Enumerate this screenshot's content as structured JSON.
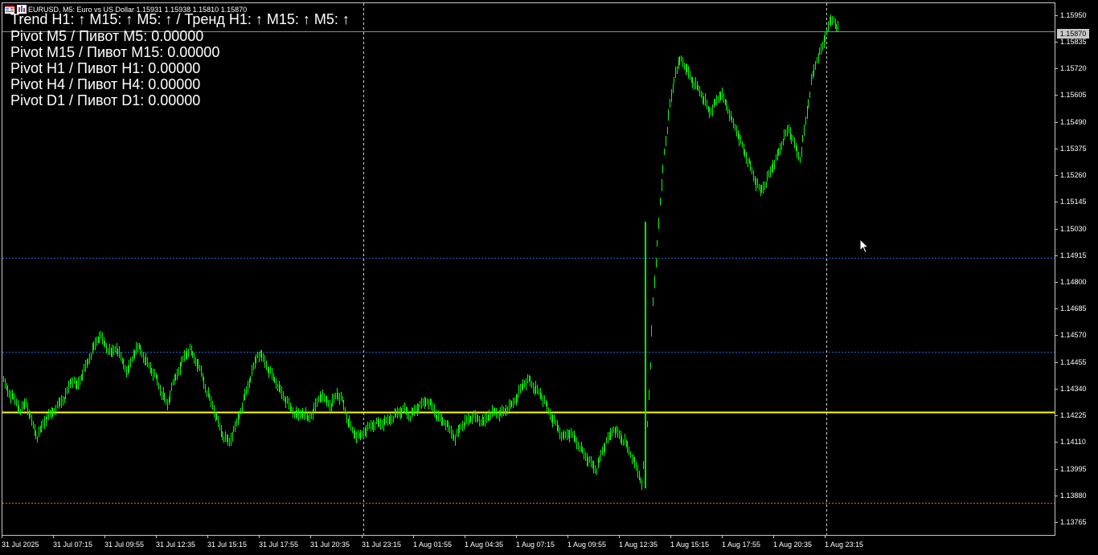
{
  "window": {
    "symbol_line": "EURUSD, M5:  Euro vs US Dollar  1.15931 1.15938 1.15810 1.15870"
  },
  "overlay": {
    "trend": "Trend H1: ↑  M15: ↑  M5: ↑ / Тренд H1: ↑  M15: ↑  M5: ↑",
    "pivot_m5": "Pivot M5 / Пивот M5: 0.00000",
    "pivot_m15": "Pivot M15 / Пивот M15: 0.00000",
    "pivot_h1": "Pivot H1 / Пивот H1: 0.00000",
    "pivot_h4": "Pivot H4 / Пивот H4: 0.00000",
    "pivot_d1": "Pivot D1 / Пивот D1: 0.00000"
  },
  "colors": {
    "background": "#000000",
    "candles": "#00ff00",
    "yellow_line": "#ffff00",
    "blue_dotted": "#1e64c8",
    "orange_dotted": "#c87814",
    "grid_white": "#c8c8c8"
  },
  "chart_data": {
    "type": "line",
    "symbol": "EURUSD",
    "timeframe": "M5",
    "current_price": "1.15870",
    "price_ticks": [
      "1.15950",
      "1.15835",
      "1.15720",
      "1.15605",
      "1.15490",
      "1.15375",
      "1.15260",
      "1.15145",
      "1.15030",
      "1.14915",
      "1.14800",
      "1.14685",
      "1.14570",
      "1.14455",
      "1.14340",
      "1.14225",
      "1.14110",
      "1.13995",
      "1.13880",
      "1.13765"
    ],
    "time_ticks": [
      "31 Jul 2025",
      "31 Jul 07:15",
      "31 Jul 09:55",
      "31 Jul 12:35",
      "31 Jul 15:15",
      "31 Jul 17:55",
      "31 Jul 20:35",
      "31 Jul 23:15",
      "1 Aug 01:55",
      "1 Aug 04:35",
      "1 Aug 07:15",
      "1 Aug 09:55",
      "1 Aug 12:35",
      "1 Aug 15:15",
      "1 Aug 17:55",
      "1 Aug 20:35",
      "1 Aug 23:15"
    ],
    "y_range": [
      1.137,
      1.1599
    ],
    "horizontal_levels": [
      {
        "price": 1.1423,
        "color": "yellow",
        "style": "solid"
      },
      {
        "price": 1.14895,
        "color": "blue",
        "style": "dotted"
      },
      {
        "price": 1.1449,
        "color": "blue",
        "style": "dotted"
      },
      {
        "price": 1.1384,
        "color": "orange",
        "style": "dotted"
      },
      {
        "price": 1.1587,
        "color": "grey",
        "style": "solid"
      }
    ],
    "vertical_markers": [
      "31 Jul 23:15",
      "1 Aug 23:15"
    ],
    "series": [
      {
        "values": [
          1.1436,
          1.1431,
          1.1428,
          1.1424,
          1.1427,
          1.1419,
          1.1412,
          1.1418,
          1.1421,
          1.1424,
          1.1427,
          1.143,
          1.1437,
          1.1434,
          1.144,
          1.1445,
          1.1451,
          1.1456,
          1.1452,
          1.1448,
          1.1451,
          1.1445,
          1.144,
          1.1448,
          1.1451,
          1.1446,
          1.1442,
          1.1438,
          1.1431,
          1.1426,
          1.1435,
          1.1441,
          1.1447,
          1.145,
          1.1445,
          1.144,
          1.1432,
          1.1426,
          1.1418,
          1.1412,
          1.141,
          1.1416,
          1.1424,
          1.1432,
          1.144,
          1.1448,
          1.1446,
          1.1441,
          1.1437,
          1.1432,
          1.1428,
          1.1424,
          1.1421,
          1.1423,
          1.142,
          1.1424,
          1.143,
          1.1428,
          1.1426,
          1.1431,
          1.1428,
          1.1419,
          1.1414,
          1.1412,
          1.1415,
          1.1417,
          1.1418,
          1.1418,
          1.1419,
          1.1421,
          1.1423,
          1.1424,
          1.1421,
          1.1424,
          1.1426,
          1.1428,
          1.1425,
          1.142,
          1.1419,
          1.1415,
          1.1412,
          1.1417,
          1.1419,
          1.1421,
          1.142,
          1.1418,
          1.1422,
          1.1423,
          1.1422,
          1.1424,
          1.1426,
          1.143,
          1.1435,
          1.1437,
          1.1433,
          1.1431,
          1.1426,
          1.1421,
          1.1417,
          1.1412,
          1.1414,
          1.1412,
          1.1408,
          1.1404,
          1.1401,
          1.1398,
          1.1406,
          1.1411,
          1.1416,
          1.1413,
          1.141,
          1.1405,
          1.1399,
          1.1393,
          1.1418,
          1.147,
          1.1505,
          1.1535,
          1.1555,
          1.157,
          1.1575,
          1.157,
          1.1565,
          1.1562,
          1.1558,
          1.1552,
          1.1556,
          1.156,
          1.1555,
          1.1548,
          1.1543,
          1.1536,
          1.153,
          1.1523,
          1.1518,
          1.1522,
          1.1528,
          1.1533,
          1.154,
          1.1545,
          1.1538,
          1.1532,
          1.1548,
          1.1565,
          1.1575,
          1.158,
          1.159,
          1.1592,
          1.1587
        ]
      }
    ]
  }
}
